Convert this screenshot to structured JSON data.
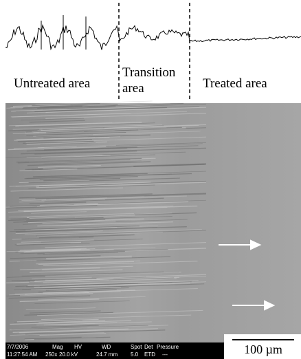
{
  "profile": {
    "regions": [
      "Untreated area",
      "Transition",
      "area",
      "Treated area"
    ]
  },
  "sem_image": {
    "info_bar": {
      "row1": [
        "7/7/2006",
        "Mag",
        "HV",
        "WD",
        "Spot",
        "Det",
        "Pressure"
      ],
      "row2": [
        "11:27:54 AM",
        "250x",
        "20.0 kV",
        "24.7 mm",
        "5.0",
        "ETD",
        "---"
      ]
    },
    "scale_bar": "100 µm"
  }
}
